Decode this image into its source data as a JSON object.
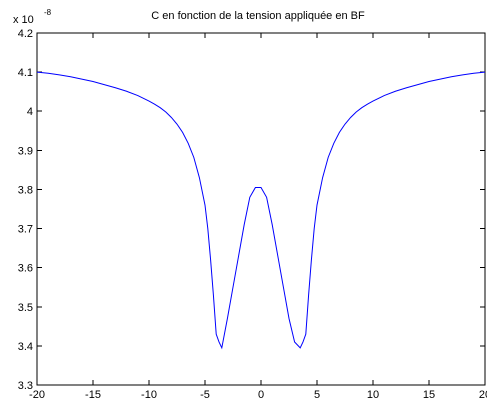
{
  "chart_data": {
    "type": "line",
    "title": "C en fonction de la tension appliquée en BF",
    "xlabel": "",
    "ylabel": "",
    "y_exponent_prefix": "x 10",
    "y_exponent": "-8",
    "xlim": [
      -20,
      20
    ],
    "ylim": [
      3.3,
      4.2
    ],
    "grid": false,
    "box": true,
    "x_ticks": [
      -20,
      -15,
      -10,
      -5,
      0,
      5,
      10,
      15,
      20
    ],
    "x_tick_labels": [
      "-20",
      "-15",
      "-10",
      "-5",
      "0",
      "5",
      "10",
      "15",
      "20"
    ],
    "y_ticks": [
      3.3,
      3.4,
      3.5,
      3.6,
      3.7,
      3.8,
      3.9,
      4.0,
      4.1,
      4.2
    ],
    "y_tick_labels": [
      "3.3",
      "3.4",
      "3.5",
      "3.6",
      "3.7",
      "3.8",
      "3.9",
      "4",
      "4.1",
      "4.2"
    ],
    "series": [
      {
        "color": "#0000ff",
        "x": [
          -20,
          -19,
          -18,
          -17,
          -16,
          -15,
          -14,
          -13,
          -12,
          -11,
          -10,
          -9.5,
          -9,
          -8.5,
          -8,
          -7.5,
          -7,
          -6.5,
          -6,
          -5.5,
          -5,
          -4.75,
          -4.5,
          -4.25,
          -4,
          -3.75,
          -3.5,
          -3,
          -2.5,
          -2,
          -1.5,
          -1,
          -0.5,
          0,
          0.5,
          1,
          1.5,
          2,
          2.5,
          3,
          3.5,
          3.75,
          4,
          4.25,
          4.5,
          4.75,
          5,
          5.5,
          6,
          6.5,
          7,
          7.5,
          8,
          8.5,
          9,
          9.5,
          10,
          11,
          12,
          13,
          14,
          15,
          16,
          17,
          18,
          19,
          20
        ],
        "y": [
          4.1,
          4.097,
          4.093,
          4.088,
          4.082,
          4.076,
          4.068,
          4.06,
          4.051,
          4.04,
          4.026,
          4.018,
          4.009,
          3.998,
          3.984,
          3.967,
          3.946,
          3.918,
          3.882,
          3.83,
          3.76,
          3.7,
          3.62,
          3.53,
          3.43,
          3.41,
          3.395,
          3.47,
          3.55,
          3.63,
          3.71,
          3.78,
          3.805,
          3.805,
          3.78,
          3.71,
          3.63,
          3.55,
          3.47,
          3.41,
          3.395,
          3.41,
          3.43,
          3.53,
          3.62,
          3.7,
          3.76,
          3.83,
          3.882,
          3.918,
          3.946,
          3.967,
          3.984,
          3.998,
          4.009,
          4.018,
          4.026,
          4.04,
          4.051,
          4.06,
          4.068,
          4.076,
          4.082,
          4.088,
          4.093,
          4.097,
          4.1
        ]
      }
    ]
  }
}
